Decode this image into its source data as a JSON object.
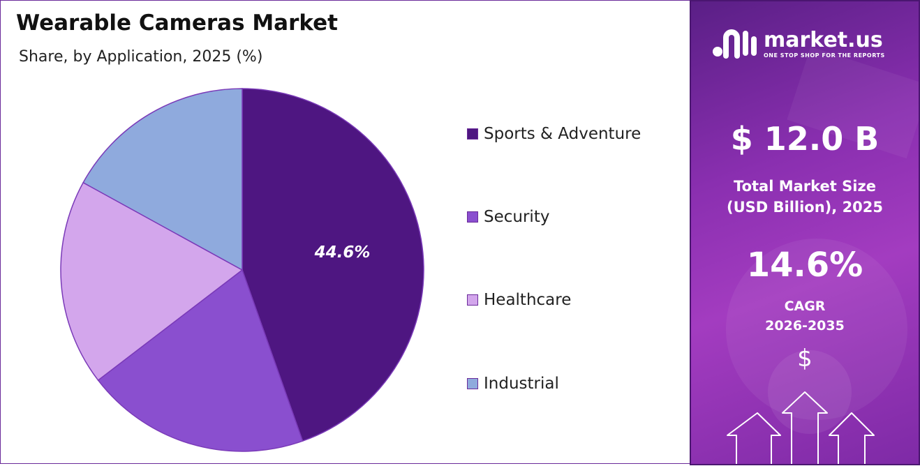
{
  "title": "Wearable Cameras Market",
  "subtitle": "Share, by Application, 2025 (%)",
  "chart_data": {
    "type": "pie",
    "title": "Wearable Cameras Market",
    "subtitle": "Share, by Application, 2025 (%)",
    "categories": [
      "Sports & Adventure",
      "Security",
      "Healthcare",
      "Industrial"
    ],
    "values": [
      44.6,
      20.0,
      18.4,
      17.0
    ],
    "data_labels": [
      "44.6%",
      "",
      "",
      ""
    ],
    "colors": [
      "#4e1681",
      "#8a4fcf",
      "#d3a6ec",
      "#8faadd"
    ],
    "legend_position": "right"
  },
  "legend": {
    "items": [
      {
        "label": "Sports & Adventure",
        "color": "#4e1681"
      },
      {
        "label": "Security",
        "color": "#8a4fcf"
      },
      {
        "label": "Healthcare",
        "color": "#d3a6ec"
      },
      {
        "label": "Industrial",
        "color": "#8faadd"
      }
    ]
  },
  "sidebar": {
    "brand_name": "market.us",
    "brand_tagline": "ONE STOP SHOP FOR THE REPORTS",
    "market_size": "$ 12.0 B",
    "market_size_label_line1": "Total Market Size",
    "market_size_label_line2": "(USD Billion), 2025",
    "cagr_value": "14.6%",
    "cagr_label_line1": "CAGR",
    "cagr_label_line2": "2026-2035",
    "dollar_symbol": "$",
    "accent_color": "#8a2fb0",
    "icons": [
      "logo-icon",
      "dollar-icon",
      "arrow-up-icon"
    ]
  }
}
